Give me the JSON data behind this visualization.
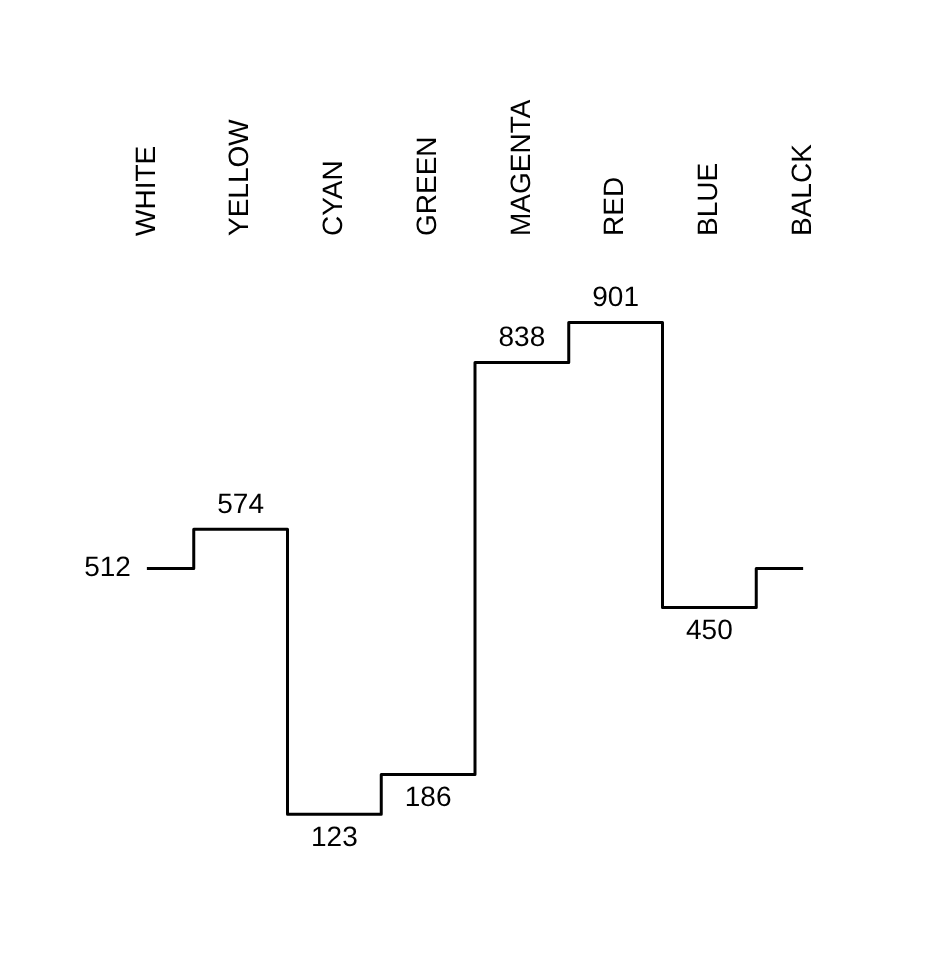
{
  "chart_data": {
    "type": "step",
    "categories": [
      "WHITE",
      "YELLOW",
      "CYAN",
      "GREEN",
      "MAGENTA",
      "RED",
      "BLUE",
      "BALCK"
    ],
    "values": [
      512,
      574,
      123,
      186,
      838,
      901,
      450,
      512
    ],
    "value_labels": [
      "512",
      "574",
      "123",
      "186",
      "838",
      "901",
      "450",
      null
    ],
    "color": "#000000",
    "grid": false,
    "legend": false,
    "marker": "none",
    "line_style": "solid"
  }
}
